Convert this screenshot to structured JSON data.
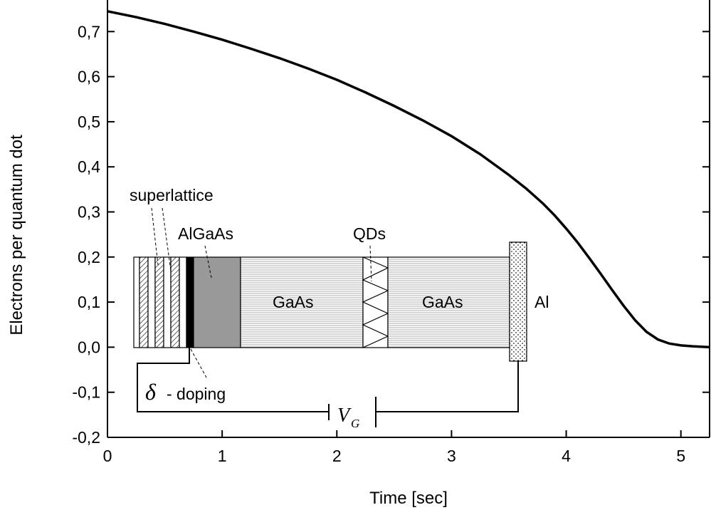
{
  "chart_data": {
    "type": "line",
    "x_label": "Time [sec]",
    "y_label": "Electrons per quantum dot",
    "x": [
      0,
      0.25,
      0.5,
      0.75,
      1,
      1.25,
      1.5,
      1.75,
      2,
      2.25,
      2.5,
      2.75,
      3,
      3.25,
      3.5,
      3.65,
      3.8,
      3.9,
      4,
      4.1,
      4.2,
      4.3,
      4.4,
      4.5,
      4.6,
      4.7,
      4.8,
      4.9,
      5,
      5.1,
      5.25
    ],
    "series": [
      {
        "name": "Electrons per quantum dot",
        "color": "#000000",
        "values": [
          0.745,
          0.732,
          0.717,
          0.7,
          0.682,
          0.662,
          0.641,
          0.618,
          0.593,
          0.565,
          0.535,
          0.503,
          0.468,
          0.428,
          0.382,
          0.352,
          0.318,
          0.292,
          0.263,
          0.232,
          0.198,
          0.163,
          0.127,
          0.092,
          0.06,
          0.034,
          0.017,
          0.008,
          0.004,
          0.002,
          0.0
        ]
      }
    ],
    "xlim": [
      0,
      5.25
    ],
    "ylim": [
      -0.2,
      0.77
    ],
    "xticks": [
      0,
      1,
      2,
      3,
      4,
      5
    ],
    "yticks": [
      {
        "value": -0.2,
        "label": "-0,2"
      },
      {
        "value": -0.1,
        "label": "-0,1"
      },
      {
        "value": 0.0,
        "label": "0,0"
      },
      {
        "value": 0.1,
        "label": "0,1"
      },
      {
        "value": 0.2,
        "label": "0,2"
      },
      {
        "value": 0.3,
        "label": "0,3"
      },
      {
        "value": 0.4,
        "label": "0,4"
      },
      {
        "value": 0.5,
        "label": "0,5"
      },
      {
        "value": 0.6,
        "label": "0,6"
      },
      {
        "value": 0.7,
        "label": "0,7"
      }
    ],
    "grid": false,
    "annotations": [
      "superlattice",
      "AlGaAs",
      "GaAs",
      "QDs",
      "GaAs",
      "Al",
      "δ",
      "- doping",
      "V",
      "G"
    ]
  }
}
